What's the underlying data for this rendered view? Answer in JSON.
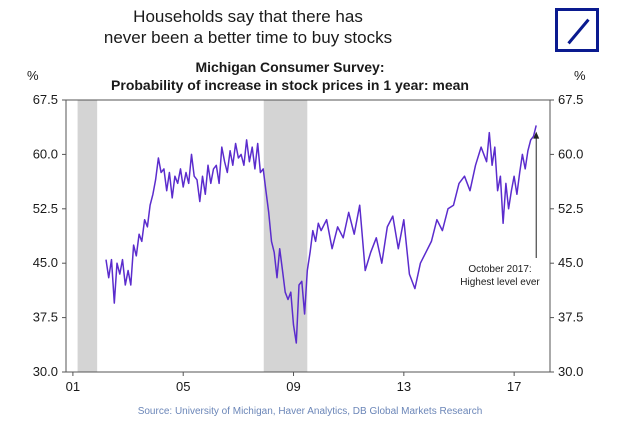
{
  "headline": [
    "Households say that there has",
    "never been a better time to buy stocks"
  ],
  "logo": {
    "name": "Deutsche Bank",
    "color": "#0a1a8f"
  },
  "chart_data": {
    "type": "line",
    "title": "Michigan Consumer Survey:",
    "subtitle": "Probability of increase in stock prices in 1 year: mean",
    "ylabel_left": "%",
    "ylabel_right": "%",
    "ylim": [
      30,
      67.5
    ],
    "xlim": [
      2000.75,
      2018.3
    ],
    "yticks": [
      30,
      37.5,
      45,
      52.5,
      60,
      67.5
    ],
    "ytick_labels": [
      "30.0",
      "37.5",
      "45.0",
      "52.5",
      "60.0",
      "67.5"
    ],
    "xticks": [
      2001,
      2005,
      2009,
      2013,
      2017
    ],
    "xtick_labels": [
      "01",
      "05",
      "09",
      "13",
      "17"
    ],
    "recessions": [
      [
        2001.17,
        2001.88
      ],
      [
        2007.92,
        2009.5
      ]
    ],
    "annotation": {
      "lines": [
        "October 2017:",
        "Highest level ever"
      ],
      "x": 2017.8,
      "y": 63.7
    },
    "source": "Source: University of Michigan, Haver Analytics, DB Global Markets Research",
    "series": [
      {
        "name": "Probability of increase in stock prices in 1 year: mean",
        "color": "#5b2ccd",
        "x": [
          2002.2,
          2002.3,
          2002.4,
          2002.5,
          2002.6,
          2002.7,
          2002.8,
          2002.9,
          2003.0,
          2003.1,
          2003.2,
          2003.3,
          2003.4,
          2003.5,
          2003.6,
          2003.7,
          2003.8,
          2003.9,
          2004.0,
          2004.1,
          2004.2,
          2004.3,
          2004.4,
          2004.5,
          2004.6,
          2004.7,
          2004.8,
          2004.9,
          2005.0,
          2005.1,
          2005.2,
          2005.3,
          2005.4,
          2005.5,
          2005.6,
          2005.7,
          2005.8,
          2005.9,
          2006.0,
          2006.1,
          2006.2,
          2006.3,
          2006.4,
          2006.5,
          2006.6,
          2006.7,
          2006.8,
          2006.9,
          2007.0,
          2007.1,
          2007.2,
          2007.3,
          2007.4,
          2007.5,
          2007.6,
          2007.7,
          2007.8,
          2007.9,
          2008.0,
          2008.1,
          2008.2,
          2008.3,
          2008.4,
          2008.5,
          2008.6,
          2008.7,
          2008.8,
          2008.9,
          2009.0,
          2009.1,
          2009.2,
          2009.3,
          2009.4,
          2009.5,
          2009.6,
          2009.7,
          2009.8,
          2009.9,
          2010.0,
          2010.2,
          2010.4,
          2010.6,
          2010.8,
          2011.0,
          2011.2,
          2011.4,
          2011.6,
          2011.8,
          2012.0,
          2012.2,
          2012.4,
          2012.6,
          2012.8,
          2013.0,
          2013.2,
          2013.4,
          2013.6,
          2013.8,
          2014.0,
          2014.2,
          2014.4,
          2014.6,
          2014.8,
          2015.0,
          2015.2,
          2015.4,
          2015.6,
          2015.8,
          2016.0,
          2016.1,
          2016.2,
          2016.3,
          2016.4,
          2016.5,
          2016.6,
          2016.7,
          2016.8,
          2016.9,
          2017.0,
          2017.1,
          2017.2,
          2017.3,
          2017.4,
          2017.5,
          2017.6,
          2017.7,
          2017.8
        ],
        "values": [
          45.5,
          43.0,
          45.5,
          39.5,
          45.0,
          43.5,
          45.5,
          42.0,
          44.0,
          42.0,
          47.5,
          46.0,
          49.0,
          48.0,
          51.0,
          50.0,
          53.0,
          54.5,
          56.5,
          59.5,
          57.5,
          58.0,
          55.0,
          57.5,
          54.0,
          57.0,
          56.0,
          58.0,
          55.5,
          57.5,
          56.0,
          60.0,
          57.0,
          56.5,
          53.5,
          57.0,
          54.5,
          58.5,
          56.0,
          58.0,
          58.5,
          56.0,
          61.0,
          59.0,
          57.5,
          60.5,
          58.5,
          61.5,
          59.5,
          60.0,
          58.5,
          62.0,
          59.0,
          61.0,
          58.0,
          61.5,
          57.5,
          58.0,
          55.0,
          52.0,
          48.0,
          46.5,
          43.0,
          47.0,
          44.0,
          41.0,
          40.0,
          41.0,
          36.5,
          34.0,
          42.0,
          42.5,
          38.0,
          44.0,
          46.5,
          49.5,
          48.0,
          50.5,
          49.5,
          51.0,
          47.0,
          50.0,
          48.5,
          52.0,
          49.0,
          53.0,
          44.0,
          46.5,
          48.5,
          45.0,
          50.0,
          51.5,
          47.0,
          51.0,
          43.5,
          41.5,
          45.0,
          46.5,
          48.0,
          51.0,
          49.5,
          52.5,
          53.0,
          56.0,
          57.0,
          55.0,
          58.5,
          61.0,
          59.0,
          63.0,
          58.5,
          61.0,
          55.0,
          57.0,
          50.5,
          56.0,
          52.5,
          55.0,
          57.0,
          54.5,
          57.5,
          60.0,
          58.0,
          60.5,
          62.0,
          62.5,
          64.0
        ]
      }
    ]
  }
}
